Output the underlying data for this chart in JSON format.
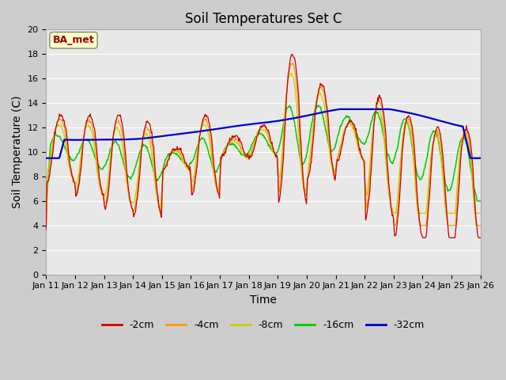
{
  "title": "Soil Temperatures Set C",
  "xlabel": "Time",
  "ylabel": "Soil Temperature (C)",
  "ylim": [
    0,
    20
  ],
  "yticks": [
    0,
    2,
    4,
    6,
    8,
    10,
    12,
    14,
    16,
    18,
    20
  ],
  "xtick_labels": [
    "Jan 11",
    "Jan 12",
    "Jan 13",
    "Jan 14",
    "Jan 15",
    "Jan 16",
    "Jan 17",
    "Jan 18",
    "Jan 19",
    "Jan 20",
    "Jan 21",
    "Jan 22",
    "Jan 23",
    "Jan 24",
    "Jan 25",
    "Jan 26"
  ],
  "colors": {
    "2cm": "#cc0000",
    "4cm": "#ff9900",
    "8cm": "#cccc00",
    "16cm": "#00cc00",
    "32cm": "#0000cc"
  },
  "annotation_text": "BA_met",
  "annotation_color": "#990000",
  "annotation_bg": "#ffffcc",
  "bg_color": "#e8e8e8",
  "fig_bg": "#cccccc",
  "title_fontsize": 12,
  "axis_fontsize": 10,
  "tick_fontsize": 8,
  "legend_fontsize": 9
}
